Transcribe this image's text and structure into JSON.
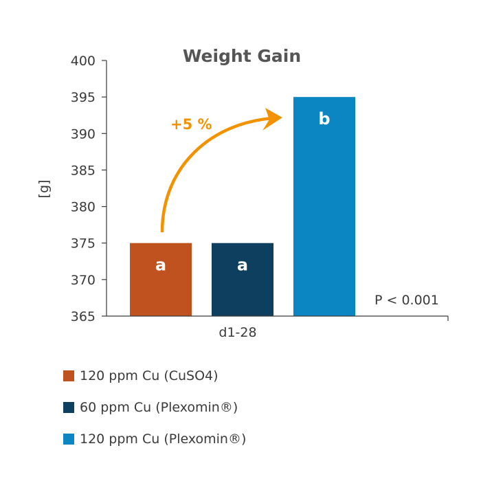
{
  "chart_data": {
    "type": "bar",
    "title": "Weight Gain",
    "ylabel": "[g]",
    "xlabel": "",
    "categories": [
      "d1-28"
    ],
    "ylim": [
      365,
      400
    ],
    "yticks": [
      365,
      370,
      375,
      380,
      385,
      390,
      395,
      400
    ],
    "grid": false,
    "legend_position": "bottom-left",
    "series": [
      {
        "name": "120 ppm Cu (CuSO4)",
        "values": [
          375
        ],
        "color": "#c0521f",
        "letter": "a"
      },
      {
        "name": "60 ppm Cu (Plexomin®)",
        "values": [
          375
        ],
        "color": "#0e3f5e",
        "letter": "a"
      },
      {
        "name": "120 ppm Cu (Plexomin®)",
        "values": [
          395
        ],
        "color": "#0b86c2",
        "letter": "b"
      }
    ],
    "annotations": {
      "increase_label": "+5 %",
      "increase_color": "#f39200",
      "p_value": "P < 0.001"
    }
  }
}
